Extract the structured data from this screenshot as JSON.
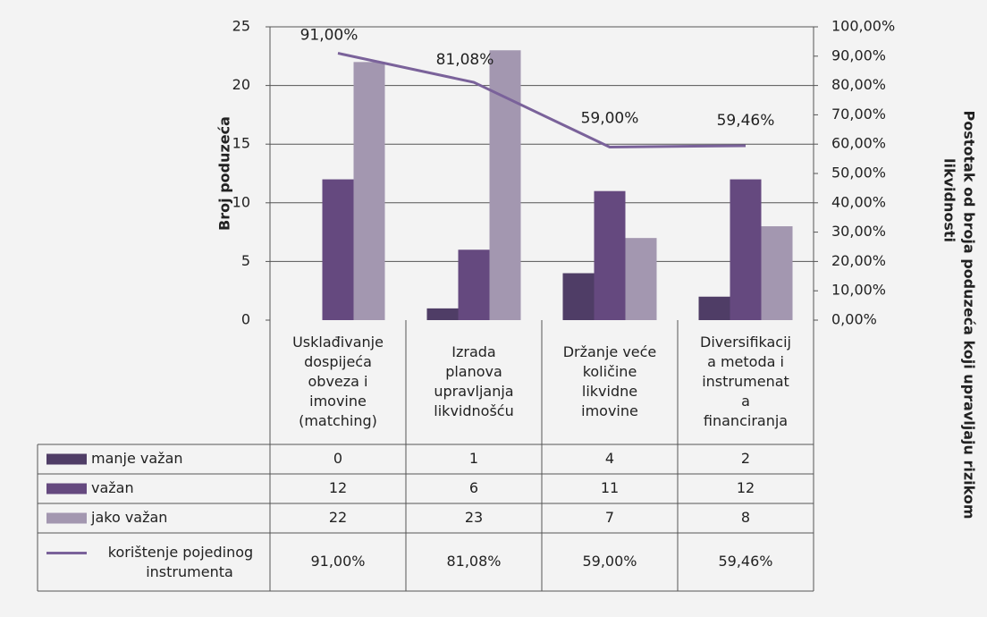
{
  "chart_data": {
    "type": "bar",
    "ylabel": "Broj poduzeća",
    "y2label_lines": [
      "Postotak od broja poduzeća koji upravljaju rizikom",
      "likvidnosti"
    ],
    "ylim": [
      0,
      25
    ],
    "y_ticks": [
      "0",
      "5",
      "10",
      "15",
      "20",
      "25"
    ],
    "y2lim": [
      0,
      100
    ],
    "y2_ticks": [
      "0,00%",
      "10,00%",
      "20,00%",
      "30,00%",
      "40,00%",
      "50,00%",
      "60,00%",
      "70,00%",
      "80,00%",
      "90,00%",
      "100,00%"
    ],
    "gridlines": true,
    "legend_placement": "data-table",
    "categories": [
      [
        "Usklađivanje",
        "dospijeća",
        "obveza i",
        "imovine",
        "(matching)"
      ],
      [
        "Izrada",
        "planova",
        "upravljanja",
        "likvidnošću"
      ],
      [
        "Držanje veće",
        "količine",
        "likvidne",
        "imovine"
      ],
      [
        "Diversifikacij",
        "a metoda i",
        "instrumenat",
        "a",
        "financiranja"
      ]
    ],
    "series": [
      {
        "name": "manje važan",
        "type": "bar",
        "axis": "left",
        "color": "#4f3d66",
        "values": [
          0,
          1,
          4,
          2
        ],
        "labels": [
          "0",
          "1",
          "4",
          "2"
        ]
      },
      {
        "name": "važan",
        "type": "bar",
        "axis": "left",
        "color": "#65497f",
        "values": [
          12,
          6,
          11,
          12
        ],
        "labels": [
          "12",
          "6",
          "11",
          "12"
        ]
      },
      {
        "name": "jako važan",
        "type": "bar",
        "axis": "left",
        "color": "#a397b0",
        "values": [
          22,
          23,
          7,
          8
        ],
        "labels": [
          "22",
          "23",
          "7",
          "8"
        ]
      },
      {
        "name_lines": [
          "korištenje pojedinog",
          "instrumenta"
        ],
        "type": "line",
        "axis": "right",
        "color": "#7a629a",
        "values": [
          91.0,
          81.08,
          59.0,
          59.46
        ],
        "labels": [
          "91,00%",
          "81,08%",
          "59,00%",
          "59,46%"
        ]
      }
    ]
  }
}
